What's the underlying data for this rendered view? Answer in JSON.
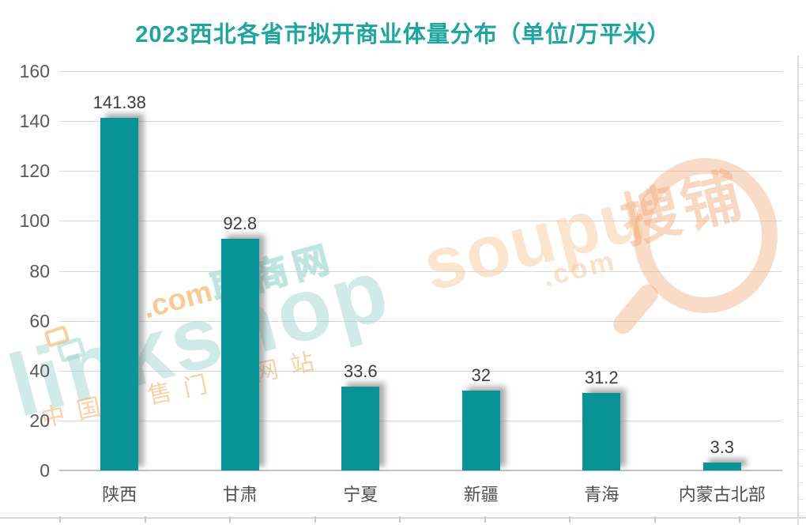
{
  "chart_data": {
    "type": "bar",
    "title": "2023西北各省市拟开商业体量分布（单位/万平米）",
    "categories": [
      "陕西",
      "甘肃",
      "宁夏",
      "新疆",
      "青海",
      "内蒙古北部"
    ],
    "values": [
      141.38,
      92.8,
      33.6,
      32,
      31.2,
      3.3
    ],
    "value_labels": [
      "141.38",
      "92.8",
      "33.6",
      "32",
      "31.2",
      "3.3"
    ],
    "xlabel": "",
    "ylabel": "",
    "unit": "万平米",
    "ylim": [
      0,
      160
    ],
    "yticks": [
      0,
      20,
      40,
      60,
      80,
      100,
      120,
      140,
      160
    ],
    "grid": "horizontal",
    "legend": "none",
    "bar_color": "#089496",
    "title_color": "#1fa5a0",
    "axis_text_color": "#595959",
    "value_text_color": "#3d3d3d"
  },
  "watermarks": {
    "linkshop": {
      "brand": "linkshop",
      "domain": ".com",
      "site_name": "联商网",
      "tagline": "中国零售门户网站",
      "teal": "#8ccdc6",
      "orange": "#f3a03e"
    },
    "soupu": {
      "brand": "soupu",
      "domain": ".com",
      "chinese": "搜铺",
      "color": "#f0a876"
    }
  }
}
